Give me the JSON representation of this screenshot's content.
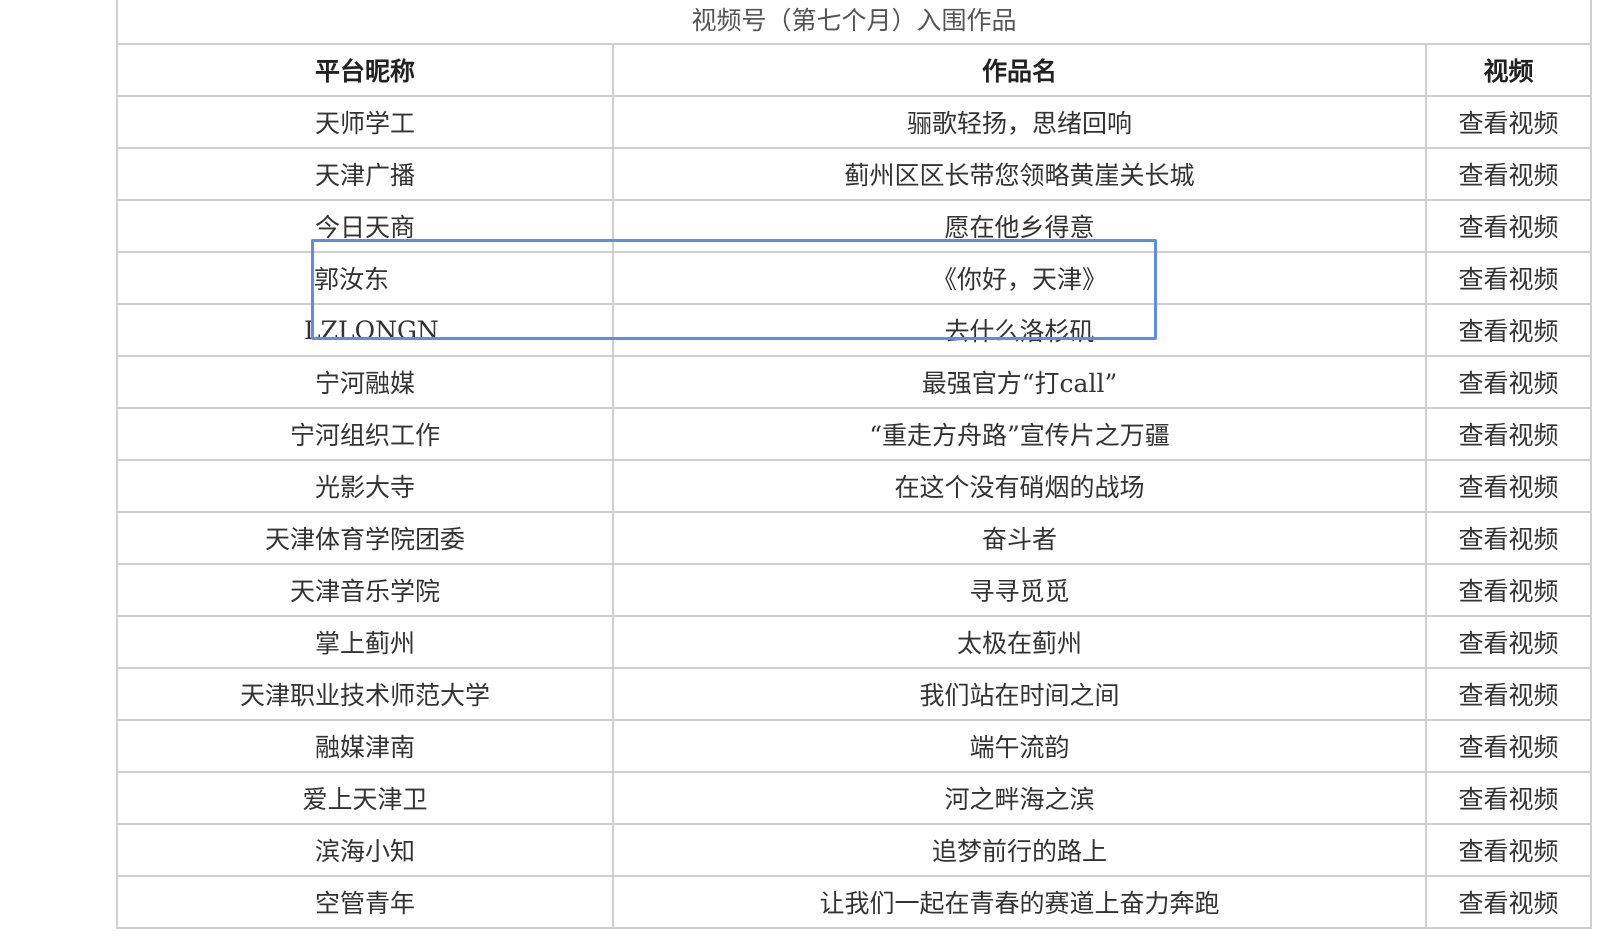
{
  "table": {
    "title": "视频号（第七个月）入围作品",
    "headers": [
      "平台昵称",
      "作品名",
      "视频"
    ],
    "rows": [
      {
        "nickname": "天师学工",
        "work": "骊歌轻扬，思绪回响",
        "link": "查看视频"
      },
      {
        "nickname": "天津广播",
        "work": "蓟州区区长带您领略黄崖关长城",
        "link": "查看视频"
      },
      {
        "nickname": "今日天商",
        "work": "愿在他乡得意",
        "link": "查看视频"
      },
      {
        "nickname": "郭汝东",
        "work": "《你好，天津》",
        "link": "查看视频"
      },
      {
        "nickname": "LZLONGN",
        "work": "去什么洛杉矶",
        "link": "查看视频"
      },
      {
        "nickname": "宁河融媒",
        "work": "最强官方“打call”",
        "link": "查看视频"
      },
      {
        "nickname": "宁河组织工作",
        "work": "“重走方舟路”宣传片之万疆",
        "link": "查看视频"
      },
      {
        "nickname": "光影大寺",
        "work": "在这个没有硝烟的战场",
        "link": "查看视频"
      },
      {
        "nickname": "天津体育学院团委",
        "work": "奋斗者",
        "link": "查看视频"
      },
      {
        "nickname": "天津音乐学院",
        "work": "寻寻觅觅",
        "link": "查看视频"
      },
      {
        "nickname": "掌上蓟州",
        "work": "太极在蓟州",
        "link": "查看视频"
      },
      {
        "nickname": "天津职业技术师范大学",
        "work": "我们站在时间之间",
        "link": "查看视频"
      },
      {
        "nickname": "融媒津南",
        "work": "端午流韵",
        "link": "查看视频"
      },
      {
        "nickname": "爱上天津卫",
        "work": "河之畔海之滨",
        "link": "查看视频"
      },
      {
        "nickname": "滨海小知",
        "work": "追梦前行的路上",
        "link": "查看视频"
      },
      {
        "nickname": "空管青年",
        "work": "让我们一起在青春的赛道上奋力奔跑",
        "link": "查看视频"
      }
    ]
  },
  "highlight_color": "#5b8ee6"
}
